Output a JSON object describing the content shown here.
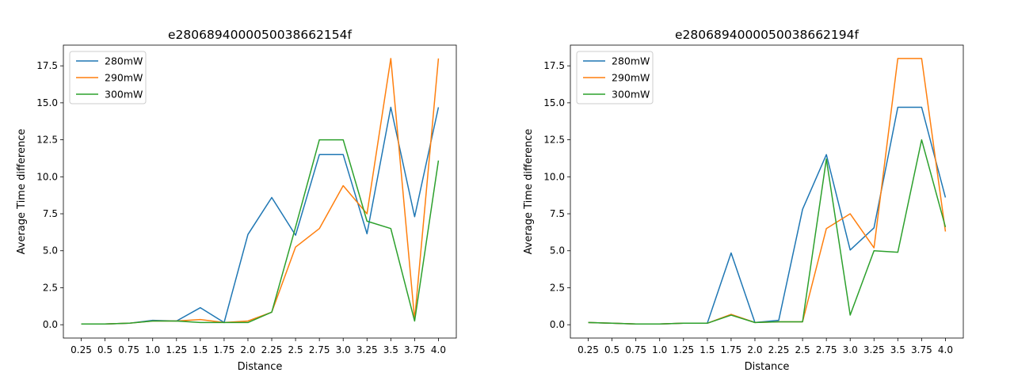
{
  "chart_data": [
    {
      "type": "line",
      "title": "e280689400005003866215​4f",
      "xlabel": "Distance",
      "ylabel": "Average Time difference",
      "x": [
        0.25,
        0.5,
        0.75,
        1.0,
        1.25,
        1.5,
        1.75,
        2.0,
        2.25,
        2.5,
        2.75,
        3.0,
        3.25,
        3.5,
        3.75,
        4.0
      ],
      "x_tick_labels": [
        "0.25",
        "0.5",
        "0.75",
        "1.0",
        "1.25",
        "1.5",
        "1.75",
        "2.0",
        "2.25",
        "2.5",
        "2.75",
        "3.0",
        "3.25",
        "3.5",
        "3.75",
        "4.0"
      ],
      "y_ticks": [
        0.0,
        2.5,
        5.0,
        7.5,
        10.0,
        12.5,
        15.0,
        17.5
      ],
      "y_tick_labels": [
        "0.0",
        "2.5",
        "5.0",
        "7.5",
        "10.0",
        "12.5",
        "15.0",
        "17.5"
      ],
      "ylim": [
        -0.9,
        18.9
      ],
      "legend_position": "top-left",
      "grid": false,
      "series": [
        {
          "name": "280mW",
          "color": "#1f77b4",
          "values": [
            0.05,
            0.05,
            0.1,
            0.3,
            0.25,
            1.15,
            0.15,
            6.1,
            8.6,
            6.05,
            11.5,
            11.5,
            6.15,
            14.7,
            7.3,
            14.7
          ]
        },
        {
          "name": "290mW",
          "color": "#ff7f0e",
          "values": [
            0.05,
            0.05,
            0.1,
            0.25,
            0.25,
            0.35,
            0.15,
            0.25,
            0.85,
            5.25,
            6.5,
            9.4,
            7.5,
            18.0,
            0.35,
            18.0
          ]
        },
        {
          "name": "300mW",
          "color": "#2ca02c",
          "values": [
            0.05,
            0.05,
            0.1,
            0.25,
            0.25,
            0.15,
            0.15,
            0.15,
            0.85,
            6.6,
            12.5,
            12.5,
            7.0,
            6.5,
            0.25,
            11.1
          ]
        }
      ]
    },
    {
      "type": "line",
      "title": "e280689400005003866219​4f",
      "xlabel": "Distance",
      "ylabel": "Average Time difference",
      "x": [
        0.25,
        0.5,
        0.75,
        1.0,
        1.25,
        1.5,
        1.75,
        2.0,
        2.25,
        2.5,
        2.75,
        3.0,
        3.25,
        3.5,
        3.75,
        4.0
      ],
      "x_tick_labels": [
        "0.25",
        "0.5",
        "0.75",
        "1.0",
        "1.25",
        "1.5",
        "1.75",
        "2.0",
        "2.25",
        "2.5",
        "2.75",
        "3.0",
        "3.25",
        "3.5",
        "3.75",
        "4.0"
      ],
      "y_ticks": [
        0.0,
        2.5,
        5.0,
        7.5,
        10.0,
        12.5,
        15.0,
        17.5
      ],
      "y_tick_labels": [
        "0.0",
        "2.5",
        "5.0",
        "7.5",
        "10.0",
        "12.5",
        "15.0",
        "17.5"
      ],
      "ylim": [
        -0.9,
        18.9
      ],
      "legend_position": "top-left",
      "grid": false,
      "series": [
        {
          "name": "280mW",
          "color": "#1f77b4",
          "values": [
            0.15,
            0.1,
            0.05,
            0.05,
            0.1,
            0.1,
            4.85,
            0.15,
            0.3,
            7.8,
            11.5,
            5.05,
            6.55,
            14.7,
            14.7,
            8.6
          ]
        },
        {
          "name": "290mW",
          "color": "#ff7f0e",
          "values": [
            0.15,
            0.1,
            0.05,
            0.05,
            0.1,
            0.1,
            0.7,
            0.15,
            0.2,
            0.2,
            6.5,
            7.5,
            5.2,
            18.0,
            18.0,
            6.3
          ]
        },
        {
          "name": "300mW",
          "color": "#2ca02c",
          "values": [
            0.15,
            0.1,
            0.05,
            0.05,
            0.1,
            0.1,
            0.65,
            0.15,
            0.2,
            0.2,
            11.2,
            0.65,
            5.0,
            4.9,
            12.5,
            6.6
          ]
        }
      ]
    }
  ]
}
